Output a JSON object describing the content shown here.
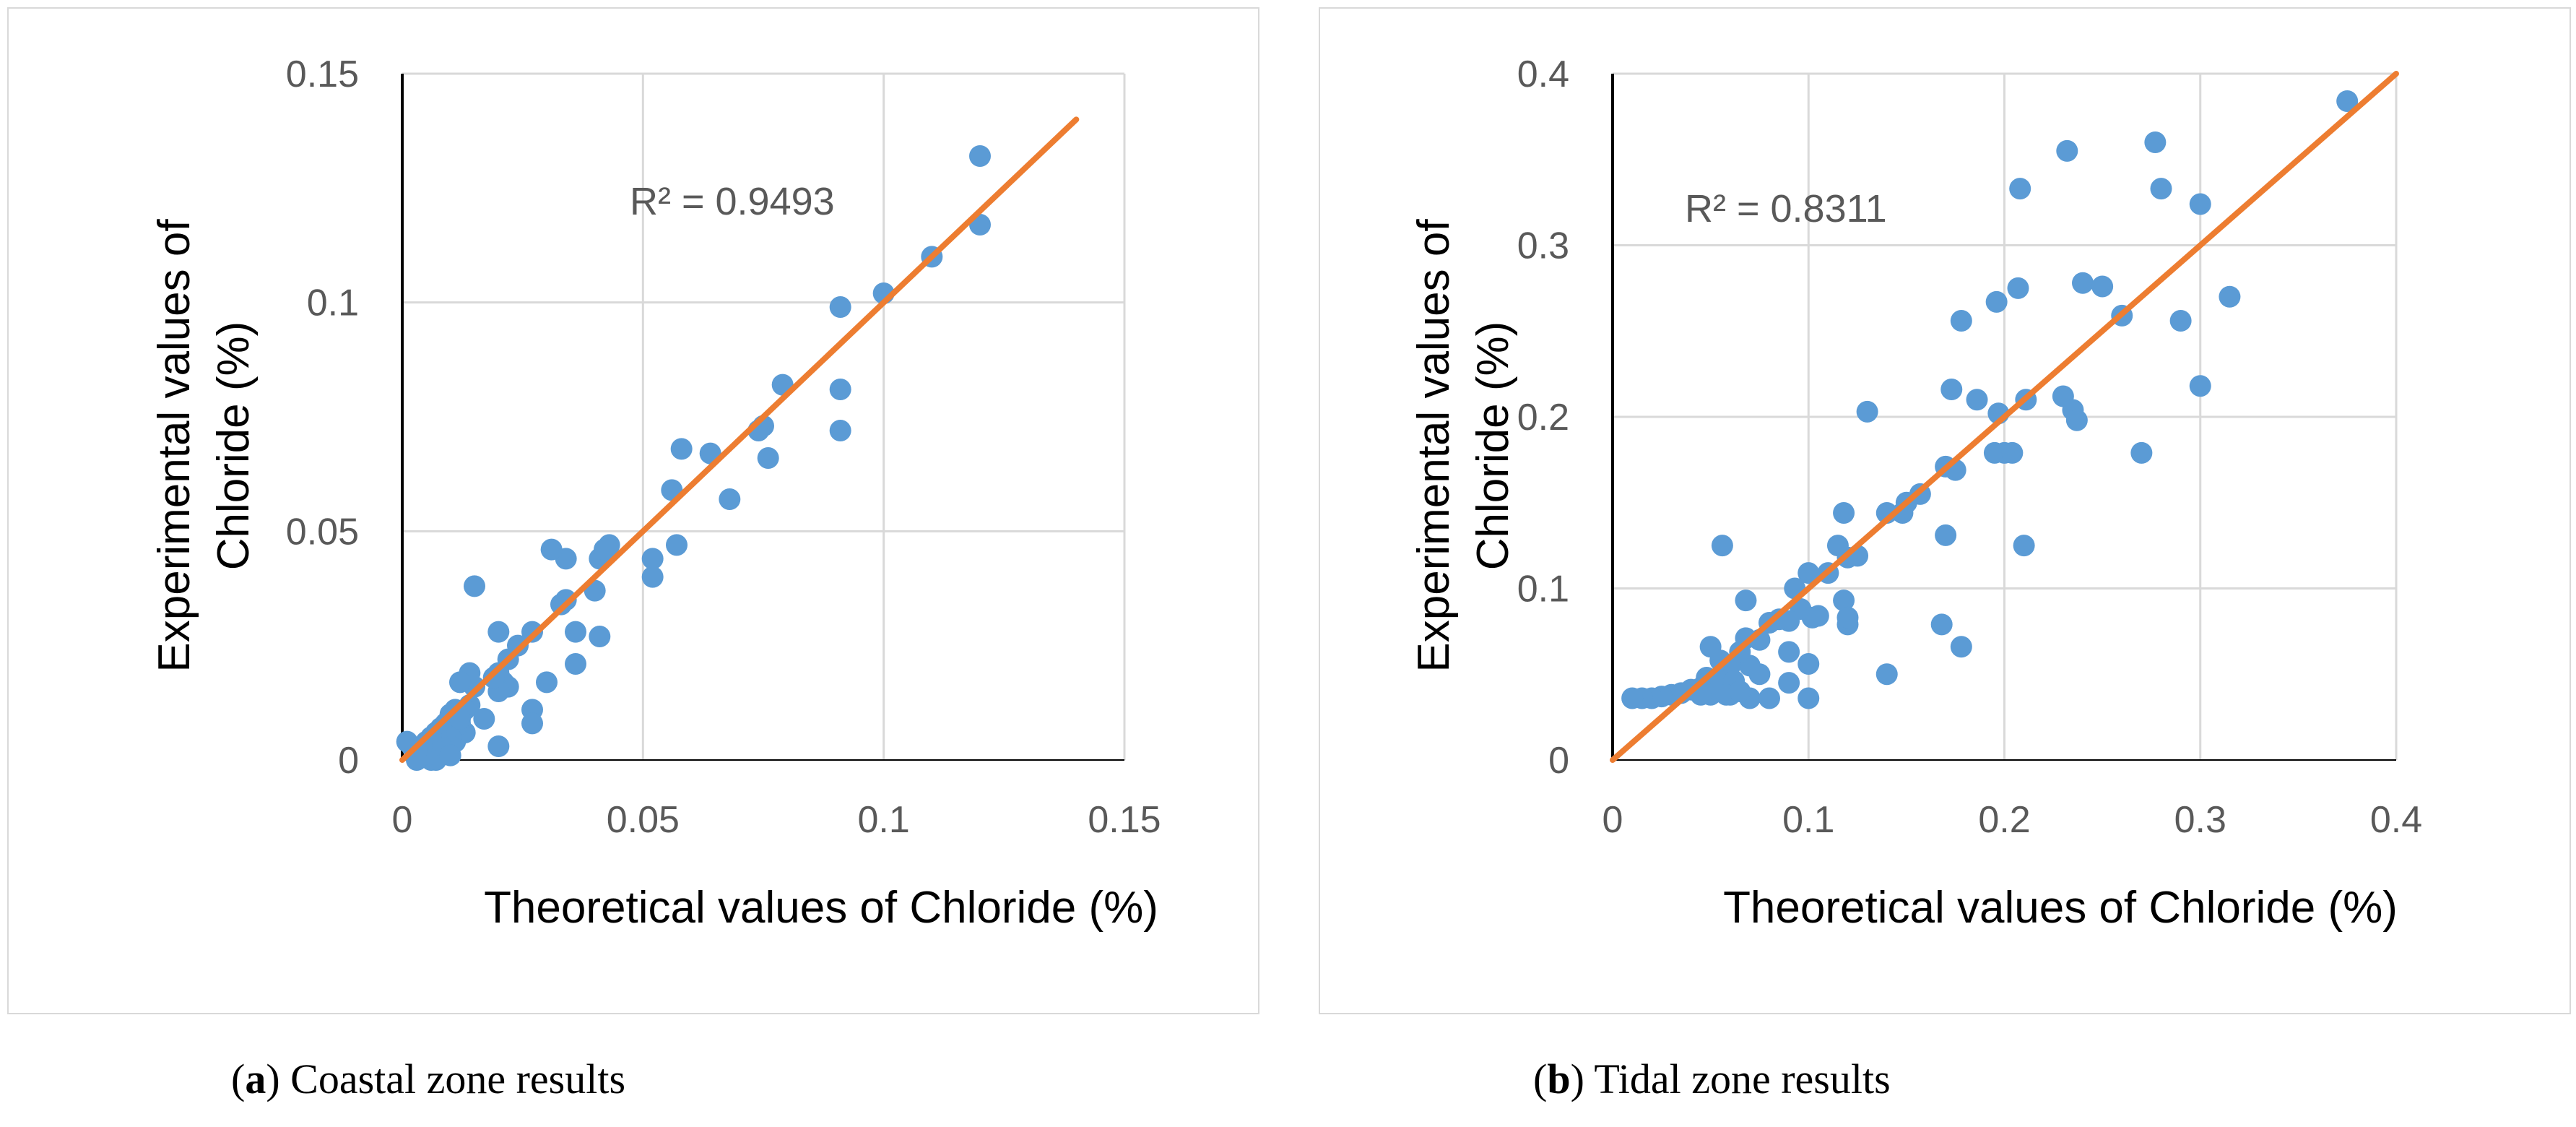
{
  "colors": {
    "points": "#5b9bd5",
    "trendline": "#ed7d31",
    "grid": "#d9d9d9",
    "axis": "#000000",
    "tick_text": "#595959"
  },
  "captions": [
    {
      "open": "(",
      "letter": "a",
      "close": ") Coastal zone results"
    },
    {
      "open": "(",
      "letter": "b",
      "close": ") Tidal zone results"
    }
  ],
  "chart_data": [
    {
      "type": "scatter",
      "title": "",
      "xlabel": "Theoretical values of Chloride (%)",
      "ylabel_lines": [
        "Experimental values of",
        "Chloride (%)"
      ],
      "xlim": [
        0,
        0.15
      ],
      "ylim": [
        0,
        0.15
      ],
      "xticks": [
        0,
        0.05,
        0.1,
        0.15
      ],
      "yticks": [
        0,
        0.05,
        0.1,
        0.15
      ],
      "xtick_labels": [
        "0",
        "0.05",
        "0.1",
        "0.15"
      ],
      "ytick_labels": [
        "0",
        "0.05",
        "0.1",
        "0.15"
      ],
      "annotation": "R² = 0.9493",
      "trendline": {
        "x": [
          0,
          0.14
        ],
        "y": [
          0,
          0.14
        ]
      },
      "series": [
        {
          "name": "Coastal zone",
          "x": [
            0.12,
            0.12,
            0.11,
            0.1,
            0.091,
            0.091,
            0.091,
            0.079,
            0.076,
            0.075,
            0.074,
            0.068,
            0.064,
            0.058,
            0.057,
            0.056,
            0.052,
            0.052,
            0.043,
            0.042,
            0.041,
            0.042,
            0.04,
            0.041,
            0.036,
            0.036,
            0.034,
            0.034,
            0.033,
            0.031,
            0.03,
            0.027,
            0.027,
            0.027,
            0.024,
            0.022,
            0.022,
            0.021,
            0.02,
            0.02,
            0.02,
            0.02,
            0.019,
            0.017,
            0.015,
            0.015,
            0.014,
            0.014,
            0.013,
            0.013,
            0.012,
            0.012,
            0.011,
            0.011,
            0.011,
            0.01,
            0.01,
            0.01,
            0.009,
            0.009,
            0.009,
            0.008,
            0.008,
            0.008,
            0.007,
            0.007,
            0.007,
            0.006,
            0.006,
            0.006,
            0.005,
            0.005,
            0.004,
            0.004,
            0.003,
            0.003,
            0.002,
            0.001,
            0.01,
            0.012
          ],
          "y": [
            0.132,
            0.117,
            0.11,
            0.102,
            0.099,
            0.081,
            0.072,
            0.082,
            0.066,
            0.073,
            0.072,
            0.057,
            0.067,
            0.068,
            0.047,
            0.059,
            0.044,
            0.04,
            0.047,
            0.045,
            0.044,
            0.046,
            0.037,
            0.027,
            0.028,
            0.021,
            0.035,
            0.044,
            0.034,
            0.046,
            0.017,
            0.028,
            0.011,
            0.008,
            0.025,
            0.022,
            0.016,
            0.017,
            0.028,
            0.019,
            0.015,
            0.003,
            0.018,
            0.009,
            0.038,
            0.016,
            0.019,
            0.012,
            0.011,
            0.006,
            0.017,
            0.008,
            0.011,
            0.007,
            0.004,
            0.01,
            0.005,
            0.003,
            0.008,
            0.004,
            0.002,
            0.007,
            0.003,
            0.001,
            0.006,
            0.002,
            0.0,
            0.005,
            0.002,
            0.0,
            0.004,
            0.001,
            0.003,
            0.001,
            0.002,
            0.0,
            0.003,
            0.004,
            0.001,
            0.009
          ]
        }
      ]
    },
    {
      "type": "scatter",
      "title": "",
      "xlabel": "Theoretical values of Chloride (%)",
      "ylabel_lines": [
        "Experimental values of",
        "Chloride (%)"
      ],
      "xlim": [
        0,
        0.4
      ],
      "ylim": [
        0,
        0.4
      ],
      "xticks": [
        0,
        0.1,
        0.2,
        0.3,
        0.4
      ],
      "yticks": [
        0,
        0.1,
        0.2,
        0.3,
        0.4
      ],
      "xtick_labels": [
        "0",
        "0.1",
        "0.2",
        "0.3",
        "0.4"
      ],
      "ytick_labels": [
        "0",
        "0.1",
        "0.2",
        "0.3",
        "0.4"
      ],
      "annotation": "R² = 0.8311",
      "trendline": {
        "x": [
          0,
          0.4
        ],
        "y": [
          0,
          0.4
        ]
      },
      "series": [
        {
          "name": "Tidal zone",
          "x": [
            0.375,
            0.277,
            0.232,
            0.28,
            0.208,
            0.3,
            0.207,
            0.196,
            0.24,
            0.25,
            0.315,
            0.26,
            0.29,
            0.178,
            0.173,
            0.211,
            0.186,
            0.23,
            0.235,
            0.237,
            0.197,
            0.2,
            0.195,
            0.204,
            0.27,
            0.3,
            0.17,
            0.175,
            0.157,
            0.15,
            0.148,
            0.14,
            0.17,
            0.21,
            0.13,
            0.118,
            0.115,
            0.12,
            0.125,
            0.11,
            0.118,
            0.12,
            0.1,
            0.102,
            0.096,
            0.093,
            0.09,
            0.085,
            0.08,
            0.075,
            0.07,
            0.068,
            0.065,
            0.06,
            0.058,
            0.055,
            0.053,
            0.05,
            0.048,
            0.045,
            0.04,
            0.035,
            0.03,
            0.025,
            0.02,
            0.015,
            0.01,
            0.056,
            0.068,
            0.09,
            0.1,
            0.14,
            0.168,
            0.178,
            0.05,
            0.06,
            0.07,
            0.08,
            0.09,
            0.1,
            0.105,
            0.12,
            0.062,
            0.075,
            0.045,
            0.058,
            0.065
          ],
          "y": [
            0.384,
            0.36,
            0.355,
            0.333,
            0.333,
            0.324,
            0.275,
            0.267,
            0.278,
            0.276,
            0.27,
            0.259,
            0.256,
            0.256,
            0.216,
            0.21,
            0.21,
            0.212,
            0.204,
            0.198,
            0.202,
            0.179,
            0.179,
            0.179,
            0.179,
            0.218,
            0.171,
            0.169,
            0.155,
            0.15,
            0.144,
            0.144,
            0.131,
            0.125,
            0.203,
            0.144,
            0.125,
            0.118,
            0.119,
            0.109,
            0.093,
            0.079,
            0.109,
            0.083,
            0.088,
            0.1,
            0.081,
            0.082,
            0.08,
            0.07,
            0.055,
            0.071,
            0.063,
            0.055,
            0.049,
            0.058,
            0.047,
            0.066,
            0.048,
            0.042,
            0.041,
            0.039,
            0.038,
            0.037,
            0.036,
            0.036,
            0.036,
            0.125,
            0.093,
            0.063,
            0.056,
            0.05,
            0.079,
            0.066,
            0.038,
            0.038,
            0.036,
            0.036,
            0.045,
            0.036,
            0.084,
            0.083,
            0.046,
            0.05,
            0.038,
            0.038,
            0.04
          ]
        }
      ]
    }
  ]
}
